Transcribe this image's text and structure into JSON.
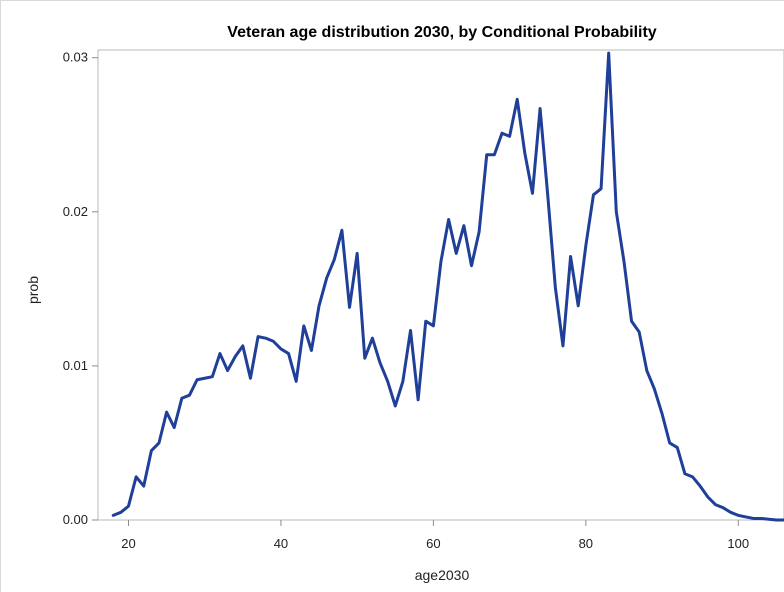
{
  "chart_data": {
    "type": "line",
    "title": "Veteran age distribution 2030, by Conditional Probability",
    "xlabel": "age2030",
    "ylabel": "prob",
    "xlim": [
      16,
      106
    ],
    "ylim": [
      0,
      0.0305
    ],
    "grid": false,
    "legend": "none",
    "x_ticks": [
      {
        "value": 20,
        "label": "20"
      },
      {
        "value": 40,
        "label": "40"
      },
      {
        "value": 60,
        "label": "60"
      },
      {
        "value": 80,
        "label": "80"
      },
      {
        "value": 100,
        "label": "100"
      }
    ],
    "y_ticks": [
      {
        "value": 0.0,
        "label": "0.00"
      },
      {
        "value": 0.01,
        "label": "0.01"
      },
      {
        "value": 0.02,
        "label": "0.02"
      },
      {
        "value": 0.03,
        "label": "0.03"
      }
    ],
    "series": [
      {
        "color": "#1f3f99",
        "x": [
          18,
          19,
          20,
          21,
          22,
          23,
          24,
          25,
          26,
          27,
          28,
          29,
          30,
          31,
          32,
          33,
          34,
          35,
          36,
          37,
          38,
          39,
          40,
          41,
          42,
          43,
          44,
          45,
          46,
          47,
          48,
          49,
          50,
          51,
          52,
          53,
          54,
          55,
          56,
          57,
          58,
          59,
          60,
          61,
          62,
          63,
          64,
          65,
          66,
          67,
          68,
          69,
          70,
          71,
          72,
          73,
          74,
          75,
          76,
          77,
          78,
          79,
          80,
          81,
          82,
          83,
          84,
          85,
          86,
          87,
          88,
          89,
          90,
          91,
          92,
          93,
          94,
          95,
          96,
          97,
          98,
          99,
          100,
          101,
          102,
          103,
          104,
          105,
          106
        ],
        "values": [
          0.0003,
          0.0005,
          0.0009,
          0.0028,
          0.0022,
          0.0045,
          0.005,
          0.007,
          0.006,
          0.0079,
          0.0081,
          0.0091,
          0.0092,
          0.0093,
          0.0108,
          0.0097,
          0.0106,
          0.0113,
          0.0092,
          0.0119,
          0.0118,
          0.0116,
          0.0111,
          0.0108,
          0.009,
          0.0126,
          0.011,
          0.0139,
          0.0157,
          0.0169,
          0.0188,
          0.0138,
          0.0173,
          0.0105,
          0.0118,
          0.0102,
          0.009,
          0.0074,
          0.009,
          0.0123,
          0.0078,
          0.0129,
          0.0126,
          0.0168,
          0.0195,
          0.0173,
          0.0191,
          0.0165,
          0.0187,
          0.0237,
          0.0237,
          0.0251,
          0.0249,
          0.0273,
          0.0238,
          0.0212,
          0.0267,
          0.0211,
          0.0151,
          0.0113,
          0.0171,
          0.0139,
          0.0178,
          0.0211,
          0.0215,
          0.0303,
          0.02,
          0.0168,
          0.0129,
          0.0122,
          0.0097,
          0.0085,
          0.0069,
          0.005,
          0.0047,
          0.003,
          0.0028,
          0.0022,
          0.0015,
          0.001,
          0.0008,
          0.0005,
          0.0003,
          0.0002,
          0.0001,
          0.0001,
          5e-05,
          0.0,
          0.0
        ]
      }
    ]
  }
}
